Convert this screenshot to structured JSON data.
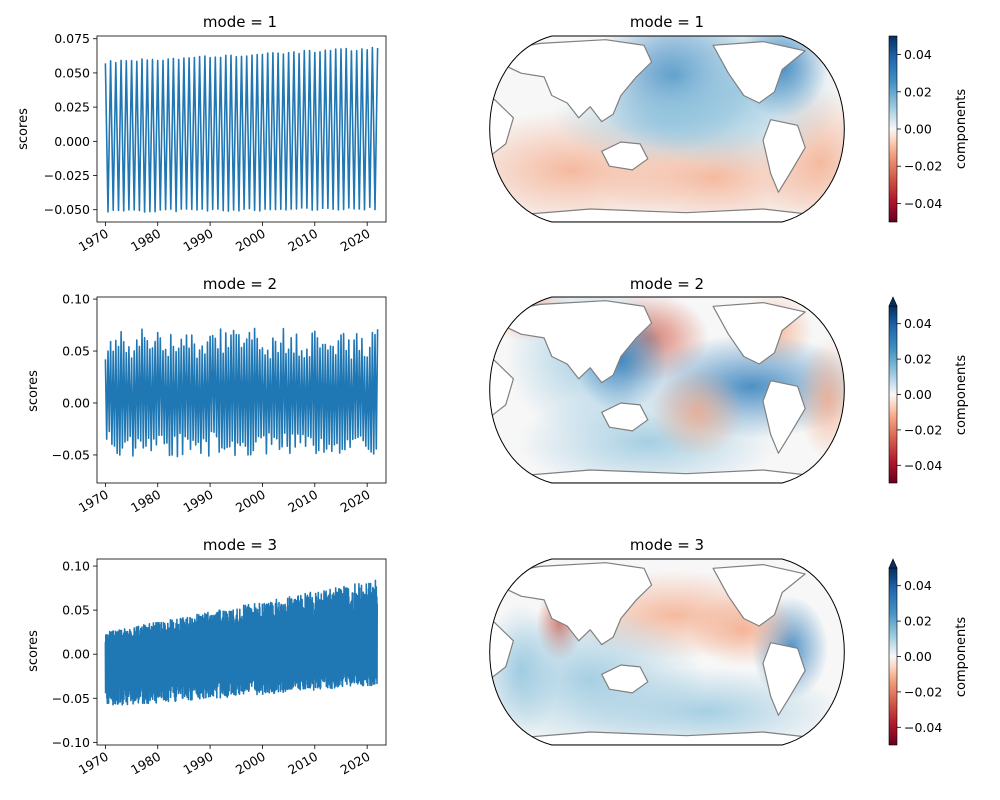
{
  "chart_data": [
    {
      "type": "line",
      "panel": "left",
      "title": "mode = 1",
      "xlabel": "",
      "ylabel": "scores",
      "xlim": [
        1968.4,
        2023.6
      ],
      "ylim": [
        -0.059,
        0.077
      ],
      "yticks": [
        -0.05,
        -0.025,
        0.0,
        0.025,
        0.05,
        0.075
      ],
      "ytick_labels": [
        "−0.050",
        "−0.025",
        "0.000",
        "0.025",
        "0.050",
        "0.075"
      ],
      "xticks": [
        1970,
        1980,
        1990,
        2000,
        2010,
        2020
      ],
      "xtick_labels": [
        "1970",
        "1980",
        "1990",
        "2000",
        "2010",
        "2020"
      ],
      "grid": false,
      "series_color": "#1f77b4",
      "series": [
        {
          "x_start": 1970,
          "x_end": 2021.9,
          "cycles_per_year": 1,
          "max_start": 0.058,
          "max_end": 0.068,
          "min_start": -0.051,
          "min_end": -0.049,
          "noise": 0.002,
          "trend": 0
        }
      ]
    },
    {
      "type": "line",
      "panel": "left",
      "title": "mode = 2",
      "xlabel": "",
      "ylabel": "scores",
      "xlim": [
        1968.4,
        2023.6
      ],
      "ylim": [
        -0.077,
        0.102
      ],
      "yticks": [
        -0.05,
        0.0,
        0.05,
        0.1
      ],
      "ytick_labels": [
        "−0.05",
        "0.00",
        "0.05",
        "0.10"
      ],
      "xticks": [
        1970,
        1980,
        1990,
        2000,
        2010,
        2020
      ],
      "xtick_labels": [
        "1970",
        "1980",
        "1990",
        "2000",
        "2010",
        "2020"
      ],
      "grid": false,
      "series_color": "#1f77b4",
      "series": [
        {
          "x_start": 1970,
          "x_end": 2021.9,
          "cycles_per_year": 2,
          "max_start": 0.06,
          "max_end": 0.065,
          "min_start": -0.045,
          "min_end": -0.045,
          "noise": 0.012,
          "trend": 0
        }
      ]
    },
    {
      "type": "line",
      "panel": "left",
      "title": "mode = 3",
      "xlabel": "",
      "ylabel": "scores",
      "xlim": [
        1968.4,
        2023.6
      ],
      "ylim": [
        -0.103,
        0.108
      ],
      "yticks": [
        -0.1,
        -0.05,
        0.0,
        0.05,
        0.1
      ],
      "ytick_labels": [
        "−0.10",
        "−0.05",
        "0.00",
        "0.05",
        "0.10"
      ],
      "xticks": [
        1970,
        1980,
        1990,
        2000,
        2010,
        2020
      ],
      "xtick_labels": [
        "1970",
        "1980",
        "1990",
        "2000",
        "2010",
        "2020"
      ],
      "grid": false,
      "series_color": "#1f77b4",
      "series": [
        {
          "x_start": 1970,
          "x_end": 2021.9,
          "cycles_per_year": 6,
          "max_start": 0.025,
          "max_end": 0.085,
          "min_start": -0.06,
          "min_end": -0.035,
          "noise": 0.012,
          "trend": 1
        }
      ]
    },
    {
      "type": "heatmap",
      "panel": "map",
      "title": "mode = 1",
      "projection": "robinson",
      "colorbar_label": "components",
      "colormap": "RdBu",
      "vlim": [
        -0.05,
        0.05
      ],
      "colorbar_ticks": [
        0.04,
        0.02,
        0.0,
        -0.02,
        -0.04
      ],
      "colorbar_tick_labels": [
        "0.04",
        "0.02",
        "0.00",
        "−0.02",
        "−0.04"
      ],
      "extend_top": false
    },
    {
      "type": "heatmap",
      "panel": "map",
      "title": "mode = 2",
      "projection": "robinson",
      "colorbar_label": "components",
      "colormap": "RdBu",
      "vlim": [
        -0.05,
        0.05
      ],
      "colorbar_ticks": [
        0.04,
        0.02,
        0.0,
        -0.02,
        -0.04
      ],
      "colorbar_tick_labels": [
        "0.04",
        "0.02",
        "0.00",
        "−0.02",
        "−0.04"
      ],
      "extend_top": true
    },
    {
      "type": "heatmap",
      "panel": "map",
      "title": "mode = 3",
      "projection": "robinson",
      "colorbar_label": "components",
      "colormap": "RdBu",
      "vlim": [
        -0.05,
        0.05
      ],
      "colorbar_ticks": [
        0.04,
        0.02,
        0.0,
        -0.02,
        -0.04
      ],
      "colorbar_tick_labels": [
        "0.04",
        "0.02",
        "0.00",
        "−0.02",
        "−0.04"
      ],
      "extend_top": true
    }
  ]
}
